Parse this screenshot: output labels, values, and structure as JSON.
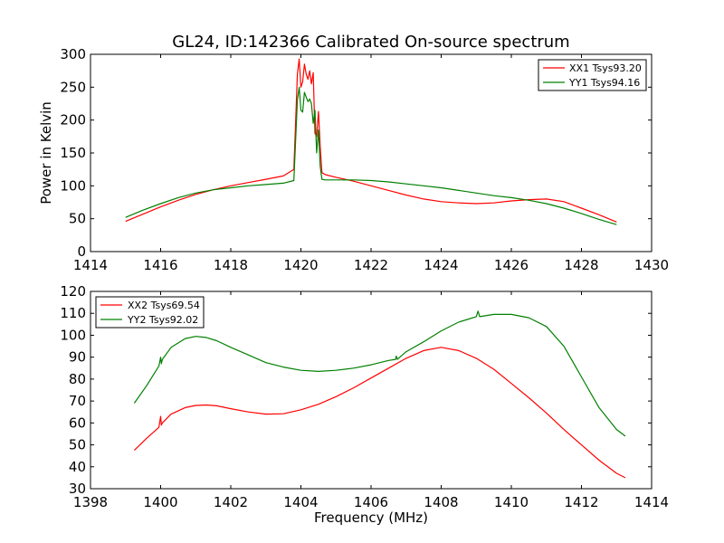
{
  "chart_data": [
    {
      "type": "line",
      "title": "GL24, ID:142366 Calibrated On-source spectrum",
      "xlabel": "",
      "ylabel": "Power in Kelvin",
      "xlim": [
        1414,
        1430
      ],
      "ylim": [
        0,
        300
      ],
      "xticks": [
        1414,
        1416,
        1418,
        1420,
        1422,
        1424,
        1426,
        1428,
        1430
      ],
      "yticks": [
        0,
        50,
        100,
        150,
        200,
        250,
        300
      ],
      "legend_position": "top-right",
      "series": [
        {
          "name": "XX1 Tsys93.20",
          "color": "#ff0000",
          "x": [
            1415.0,
            1415.5,
            1416.0,
            1416.5,
            1417.0,
            1417.5,
            1418.0,
            1418.5,
            1419.0,
            1419.5,
            1419.8,
            1419.9,
            1419.95,
            1420.0,
            1420.05,
            1420.1,
            1420.15,
            1420.2,
            1420.25,
            1420.3,
            1420.35,
            1420.4,
            1420.45,
            1420.5,
            1420.55,
            1420.6,
            1420.7,
            1421.0,
            1421.5,
            1422.0,
            1422.5,
            1423.0,
            1423.5,
            1424.0,
            1424.5,
            1425.0,
            1425.5,
            1426.0,
            1426.5,
            1427.0,
            1427.5,
            1428.0,
            1428.5,
            1429.0
          ],
          "values": [
            46,
            57,
            68,
            78,
            87,
            94,
            100,
            105,
            110,
            115,
            125,
            270,
            293,
            250,
            258,
            285,
            270,
            262,
            275,
            255,
            272,
            180,
            175,
            213,
            160,
            120,
            117,
            113,
            107,
            100,
            93,
            86,
            80,
            76,
            74,
            73,
            74,
            77,
            79,
            80,
            76,
            66,
            56,
            45
          ]
        },
        {
          "name": "YY1 Tsys94.16",
          "color": "#008000",
          "x": [
            1415.0,
            1415.5,
            1416.0,
            1416.5,
            1417.0,
            1417.5,
            1418.0,
            1418.5,
            1419.0,
            1419.5,
            1419.8,
            1419.9,
            1419.95,
            1420.0,
            1420.05,
            1420.1,
            1420.15,
            1420.2,
            1420.25,
            1420.3,
            1420.35,
            1420.4,
            1420.45,
            1420.5,
            1420.55,
            1420.6,
            1420.7,
            1421.0,
            1421.5,
            1422.0,
            1422.5,
            1423.0,
            1423.5,
            1424.0,
            1424.5,
            1425.0,
            1425.5,
            1426.0,
            1426.5,
            1427.0,
            1427.5,
            1428.0,
            1428.5,
            1429.0
          ],
          "values": [
            52,
            63,
            73,
            82,
            89,
            94,
            97,
            100,
            102,
            104,
            108,
            230,
            250,
            215,
            212,
            242,
            235,
            228,
            232,
            225,
            195,
            215,
            150,
            185,
            130,
            110,
            109,
            109,
            109,
            108,
            106,
            103,
            100,
            97,
            93,
            89,
            85,
            82,
            78,
            73,
            66,
            58,
            49,
            41
          ]
        }
      ]
    },
    {
      "type": "line",
      "title": "",
      "xlabel": "Frequency (MHz)",
      "ylabel": "",
      "xlim": [
        1398,
        1414
      ],
      "ylim": [
        30,
        120
      ],
      "xticks": [
        1398,
        1400,
        1402,
        1404,
        1406,
        1408,
        1410,
        1412,
        1414
      ],
      "yticks": [
        30,
        40,
        50,
        60,
        70,
        80,
        90,
        100,
        110,
        120
      ],
      "legend_position": "top-left",
      "series": [
        {
          "name": "XX2 Tsys69.54",
          "color": "#ff0000",
          "x": [
            1399.25,
            1399.6,
            1399.95,
            1400.0,
            1400.02,
            1400.05,
            1400.3,
            1400.7,
            1401.0,
            1401.3,
            1401.6,
            1402.0,
            1402.5,
            1403.0,
            1403.5,
            1404.0,
            1404.5,
            1405.0,
            1405.5,
            1406.0,
            1406.5,
            1407.0,
            1407.5,
            1408.0,
            1408.5,
            1409.0,
            1409.5,
            1410.0,
            1410.5,
            1411.0,
            1411.5,
            1412.0,
            1412.5,
            1413.0,
            1413.25
          ],
          "values": [
            47.5,
            53,
            58,
            63,
            59,
            60,
            64,
            67,
            68,
            68.2,
            67.8,
            66.5,
            65,
            64,
            64.2,
            66,
            68.5,
            72,
            76,
            80.5,
            85,
            89.5,
            93,
            94.5,
            93,
            89.5,
            84.5,
            78,
            71.5,
            64.5,
            57,
            50,
            43,
            37,
            35
          ]
        },
        {
          "name": "YY2 Tsys92.02",
          "color": "#008000",
          "x": [
            1399.25,
            1399.6,
            1399.95,
            1400.0,
            1400.02,
            1400.05,
            1400.3,
            1400.7,
            1401.0,
            1401.3,
            1401.6,
            1402.0,
            1402.5,
            1403.0,
            1403.5,
            1404.0,
            1404.5,
            1405.0,
            1405.5,
            1406.0,
            1406.5,
            1406.7,
            1406.72,
            1406.75,
            1407.0,
            1407.5,
            1408.0,
            1408.5,
            1409.0,
            1409.05,
            1409.1,
            1409.5,
            1410.0,
            1410.5,
            1411.0,
            1411.5,
            1412.0,
            1412.5,
            1413.0,
            1413.25
          ],
          "values": [
            69,
            77,
            86,
            90,
            87,
            89,
            94.5,
            98.5,
            99.5,
            99,
            97.5,
            94.5,
            91,
            87.5,
            85.5,
            84,
            83.5,
            84,
            85,
            86.5,
            88.5,
            89,
            90.5,
            89,
            92.5,
            97,
            102,
            106,
            108.5,
            111,
            108.5,
            109.5,
            109.5,
            108,
            104,
            95,
            81,
            67,
            57,
            54
          ]
        }
      ]
    }
  ]
}
